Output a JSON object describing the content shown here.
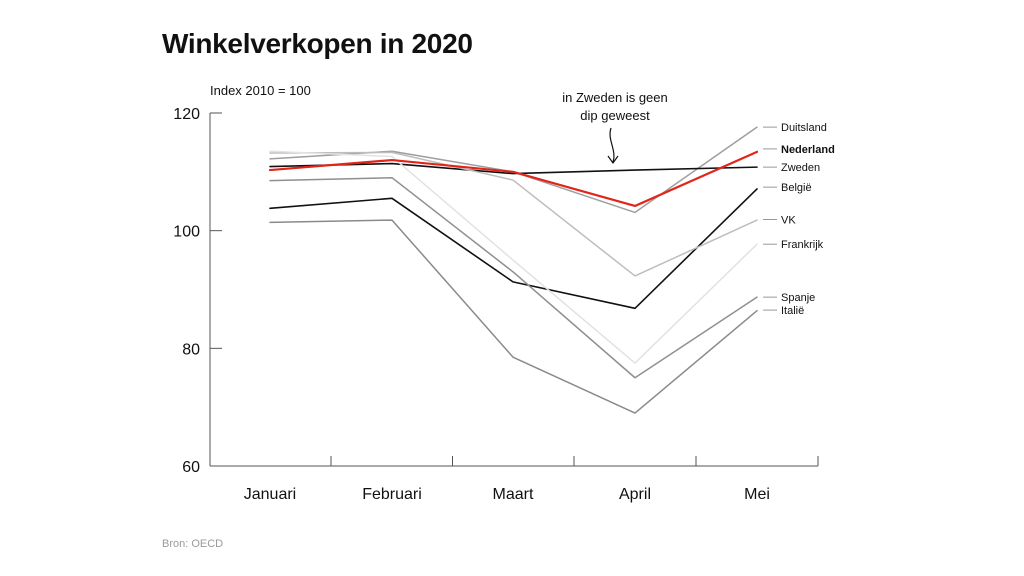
{
  "chart_data": {
    "type": "line",
    "title": "Winkelverkopen in 2020",
    "ylabel": "Index 2010 = 100",
    "source": "Bron: OECD",
    "categories": [
      "Januari",
      "Februari",
      "Maart",
      "April",
      "Mei"
    ],
    "ylim": [
      60,
      120
    ],
    "yticks": [
      60,
      80,
      100,
      120
    ],
    "annotation": {
      "lines": [
        "in Zweden is geen",
        "dip geweest"
      ],
      "target_series": "Zweden",
      "target_category": "April"
    },
    "series": [
      {
        "name": "Duitsland",
        "values": [
          112.2,
          113.5,
          110.0,
          103.1,
          117.6
        ],
        "color": "#9e9e9e",
        "width": 1.5
      },
      {
        "name": "Nederland",
        "values": [
          110.3,
          112.0,
          110.0,
          104.2,
          113.4
        ],
        "color": "#e0261b",
        "width": 2.2,
        "highlight": true
      },
      {
        "name": "Zweden",
        "values": [
          110.9,
          111.4,
          109.7,
          110.3,
          110.8
        ],
        "color": "#111111",
        "width": 1.6
      },
      {
        "name": "België",
        "values": [
          103.8,
          105.5,
          91.3,
          86.8,
          107.1
        ],
        "color": "#111111",
        "width": 1.6
      },
      {
        "name": "VK",
        "values": [
          113.2,
          113.3,
          108.6,
          92.3,
          101.8
        ],
        "color": "#bdbdbd",
        "width": 1.5
      },
      {
        "name": "Frankrijk",
        "values": [
          113.5,
          112.6,
          95.0,
          77.5,
          97.7
        ],
        "color": "#e2e2e2",
        "width": 1.5
      },
      {
        "name": "Spanje",
        "values": [
          108.5,
          109.0,
          93.0,
          75.0,
          88.7
        ],
        "color": "#8f8f8f",
        "width": 1.5
      },
      {
        "name": "Italië",
        "values": [
          101.4,
          101.8,
          78.5,
          69.0,
          86.4
        ],
        "color": "#8a8a8a",
        "width": 1.5
      }
    ],
    "label_positions_value": {
      "Duitsland": 117.6,
      "Nederland": 113.9,
      "Zweden": 110.8,
      "België": 107.4,
      "VK": 101.9,
      "Frankrijk": 97.7,
      "Spanje": 88.7,
      "Italië": 86.5
    }
  }
}
